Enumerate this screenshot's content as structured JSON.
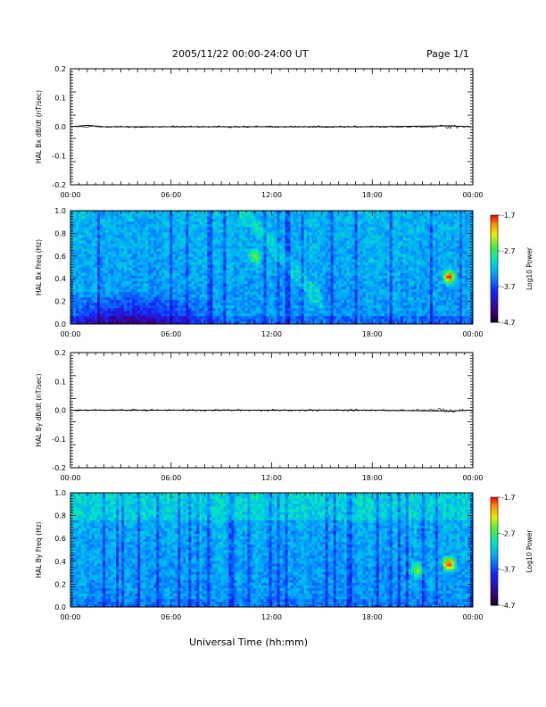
{
  "header": {
    "title": "2005/11/22  00:00-24:00 UT",
    "page": "Page 1/1"
  },
  "x_axis_title": "Universal Time (hh:mm)",
  "chart_data": [
    {
      "type": "line",
      "ylabel": "HAL Bx dB/dt (nT/sec)",
      "xlabel": "Universal Time (hh:mm)",
      "x_ticks": [
        "00:00",
        "06:00",
        "12:00",
        "18:00",
        "00:00"
      ],
      "xlim": [
        0,
        24
      ],
      "ylim": [
        -0.2,
        0.2
      ],
      "y_ticks": [
        "0.2",
        "0.1",
        "0.0",
        "-0.1",
        "-0.2"
      ],
      "series": [
        {
          "x": [
            0,
            1.0,
            2,
            6,
            12,
            18,
            22.5,
            24
          ],
          "y": [
            0.0,
            0.005,
            0.0,
            0.0,
            0.0,
            0.0,
            0.003,
            0.0
          ]
        }
      ],
      "color": "#000000"
    },
    {
      "type": "heatmap",
      "ylabel": "HAL Bx Freq (Hz)",
      "x_ticks": [
        "00:00",
        "06:00",
        "12:00",
        "18:00",
        "00:00"
      ],
      "xlim": [
        0,
        24
      ],
      "ylim": [
        0,
        1.0
      ],
      "y_ticks": [
        "1.0",
        "0.8",
        "0.6",
        "0.4",
        "0.2",
        "0.0"
      ],
      "colorbar": {
        "label": "Log10 Power",
        "ticks": [
          "-1.7",
          "-2.7",
          "-3.7",
          "-4.7"
        ],
        "range": [
          -4.7,
          -1.7
        ]
      },
      "features": [
        {
          "description": "enhanced power near 22.5 UT",
          "x": 22.6,
          "y": 0.42,
          "value": -2.2
        },
        {
          "description": "depressed power early hours at low frequency",
          "x": 3.5,
          "y": 0.05,
          "value": -4.6
        },
        {
          "description": "arc of enhanced power",
          "x": 11,
          "y": 0.6,
          "value": -3.3
        }
      ]
    },
    {
      "type": "line",
      "ylabel": "HAL By dB/dt (nT/sec)",
      "x_ticks": [
        "00:00",
        "06:00",
        "12:00",
        "18:00",
        "00:00"
      ],
      "xlim": [
        0,
        24
      ],
      "ylim": [
        -0.2,
        0.2
      ],
      "y_ticks": [
        "0.2",
        "0.1",
        "0.0",
        "-0.1",
        "-0.2"
      ],
      "series": [
        {
          "x": [
            0,
            6,
            12,
            18,
            22.5,
            24
          ],
          "y": [
            0.0,
            0.0,
            0.0,
            0.0,
            -0.003,
            0.0
          ]
        }
      ],
      "color": "#000000"
    },
    {
      "type": "heatmap",
      "ylabel": "HAL By Freq (Hz)",
      "x_ticks": [
        "00:00",
        "06:00",
        "12:00",
        "18:00",
        "00:00"
      ],
      "xlim": [
        0,
        24
      ],
      "ylim": [
        0,
        1.0
      ],
      "y_ticks": [
        "1.0",
        "0.8",
        "0.6",
        "0.4",
        "0.2",
        "0.0"
      ],
      "colorbar": {
        "label": "Log10 Power",
        "ticks": [
          "-1.7",
          "-2.7",
          "-3.7",
          "-4.7"
        ],
        "range": [
          -4.7,
          -1.7
        ]
      },
      "features": [
        {
          "description": "enhanced power near 22.5 UT",
          "x": 22.6,
          "y": 0.38,
          "value": -2.1
        },
        {
          "description": "moderate power near 20.7 UT",
          "x": 20.7,
          "y": 0.33,
          "value": -3.2
        }
      ]
    }
  ]
}
